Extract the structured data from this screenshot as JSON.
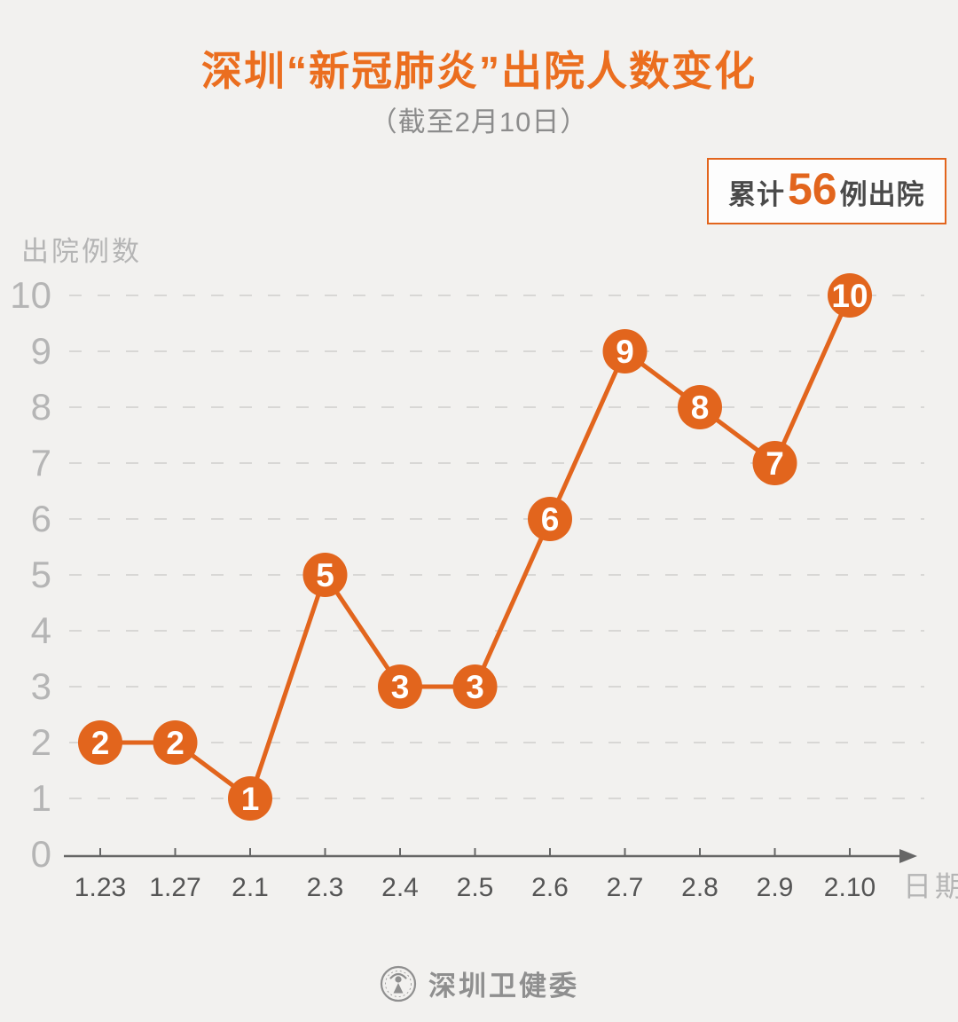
{
  "header": {
    "title": "深圳“新冠肺炎”出院人数变化",
    "subtitle": "（截至2月10日）"
  },
  "badge": {
    "prefix": "累计",
    "value": "56",
    "suffix": "例出院"
  },
  "footer": {
    "org": "深圳卫健委",
    "logo_icon": "emblem-person-icon"
  },
  "colors": {
    "accent": "#E2651D",
    "title": "#EB6E1F",
    "background": "#F2F1EF",
    "grid": "#D8D7D5",
    "axis": "#666666",
    "tick_label": "#555555",
    "muted_label": "#B5B5B5",
    "marker_fill": "#E2651D",
    "marker_text": "#FFFFFF",
    "badge_text": "#4A4A4A"
  },
  "chart_data": {
    "type": "line",
    "x": [
      "1.23",
      "1.27",
      "2.1",
      "2.3",
      "2.4",
      "2.5",
      "2.6",
      "2.7",
      "2.8",
      "2.9",
      "2.10"
    ],
    "values": [
      2,
      2,
      1,
      5,
      3,
      3,
      6,
      9,
      8,
      7,
      10
    ],
    "title": "深圳“新冠肺炎”出院人数变化（截至2月10日）",
    "xlabel": "日期",
    "ylabel": "出院例数",
    "yticks": [
      0,
      1,
      2,
      3,
      4,
      5,
      6,
      7,
      8,
      9,
      10
    ],
    "ylim": [
      0,
      10
    ],
    "grid": "horizontal-dashed",
    "legend": "none",
    "markers": "filled-circles-with-value-labels",
    "annotation_total": "累计56例出院"
  }
}
